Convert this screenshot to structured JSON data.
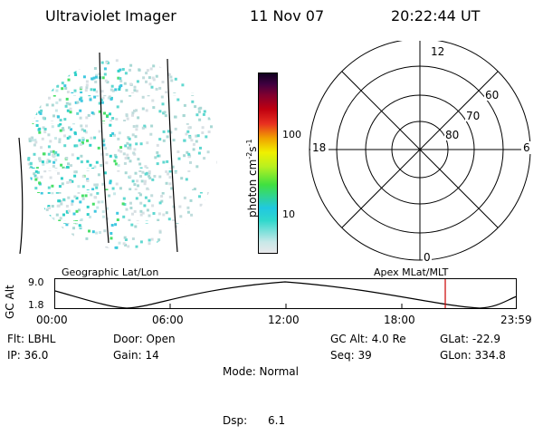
{
  "header": {
    "instrument": "Ultraviolet Imager",
    "date": "11 Nov 07",
    "time": "20:22:44 UT"
  },
  "colorbar": {
    "label": "photon cm",
    "label_exp1": "-2",
    "label_s": "s",
    "label_exp2": "-1",
    "ticks": [
      "100",
      "10"
    ]
  },
  "polar_plot": {
    "mlt_labels": [
      "12",
      "18",
      "6",
      "0"
    ],
    "lat_labels": [
      "60",
      "70",
      "80"
    ]
  },
  "timeline": {
    "left_title": "Geographic Lat/Lon",
    "right_title": "Apex MLat/MLT",
    "axis_label": "GC Alt",
    "ymax": "9.0",
    "ymin": "1.8",
    "xticks": [
      "00:00",
      "06:00",
      "12:00",
      "18:00",
      "23:59"
    ],
    "current_marker_color": "#cc0000"
  },
  "status": {
    "col1": [
      "Flt: LBHL",
      "IP: 36.0"
    ],
    "col2": [
      "Door: Open",
      "Gain: 14"
    ],
    "col3": [
      "Mode: Normal",
      "Dsp:      6.1"
    ],
    "col4": [
      "GC Alt: 4.0 Re",
      "Seq: 39"
    ],
    "col5": [
      "GLat: -22.9",
      "GLon: 334.8"
    ]
  }
}
